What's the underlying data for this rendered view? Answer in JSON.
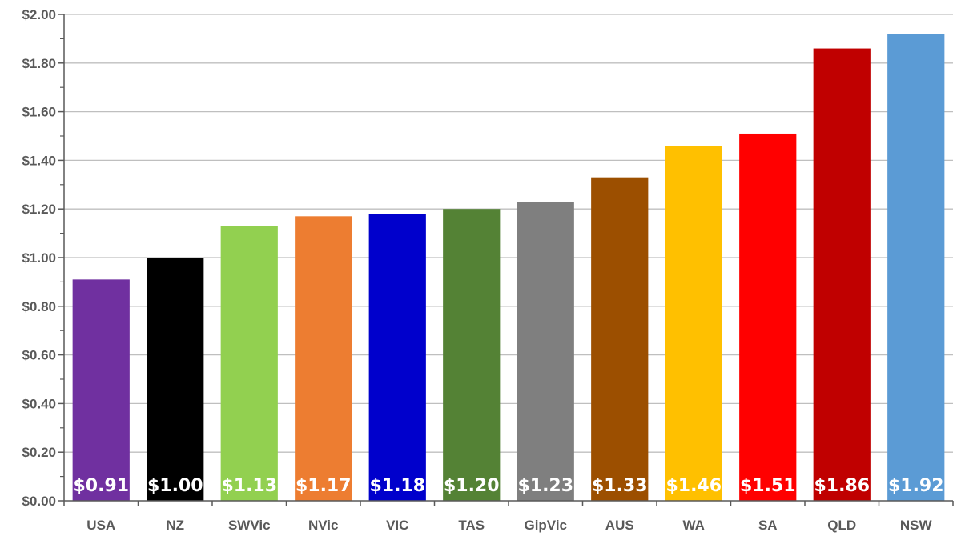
{
  "chart_data": {
    "type": "bar",
    "title": "",
    "xlabel": "",
    "ylabel": "",
    "ylim": [
      0,
      2.0
    ],
    "y_major_step": 0.2,
    "y_minor_step": 0.1,
    "y_tick_labels": [
      "$0.00",
      "$0.20",
      "$0.40",
      "$0.60",
      "$0.80",
      "$1.00",
      "$1.20",
      "$1.40",
      "$1.60",
      "$1.80",
      "$2.00"
    ],
    "grid": true,
    "legend": "none",
    "categories": [
      "USA",
      "NZ",
      "SWVic",
      "NVic",
      "VIC",
      "TAS",
      "GipVic",
      "AUS",
      "WA",
      "SA",
      "QLD",
      "NSW"
    ],
    "values": [
      0.91,
      1.0,
      1.13,
      1.17,
      1.18,
      1.2,
      1.23,
      1.33,
      1.46,
      1.51,
      1.86,
      1.92
    ],
    "value_labels": [
      "$0.91",
      "$1.00",
      "$1.13",
      "$1.17",
      "$1.18",
      "$1.20",
      "$1.23",
      "$1.33",
      "$1.46",
      "$1.51",
      "$1.86",
      "$1.92"
    ],
    "colors": [
      "#7030a0",
      "#000000",
      "#92d050",
      "#ed7d31",
      "#0000cc",
      "#548235",
      "#7f7f7f",
      "#9c4f00",
      "#ffc000",
      "#ff0000",
      "#c00000",
      "#5b9bd5"
    ]
  }
}
